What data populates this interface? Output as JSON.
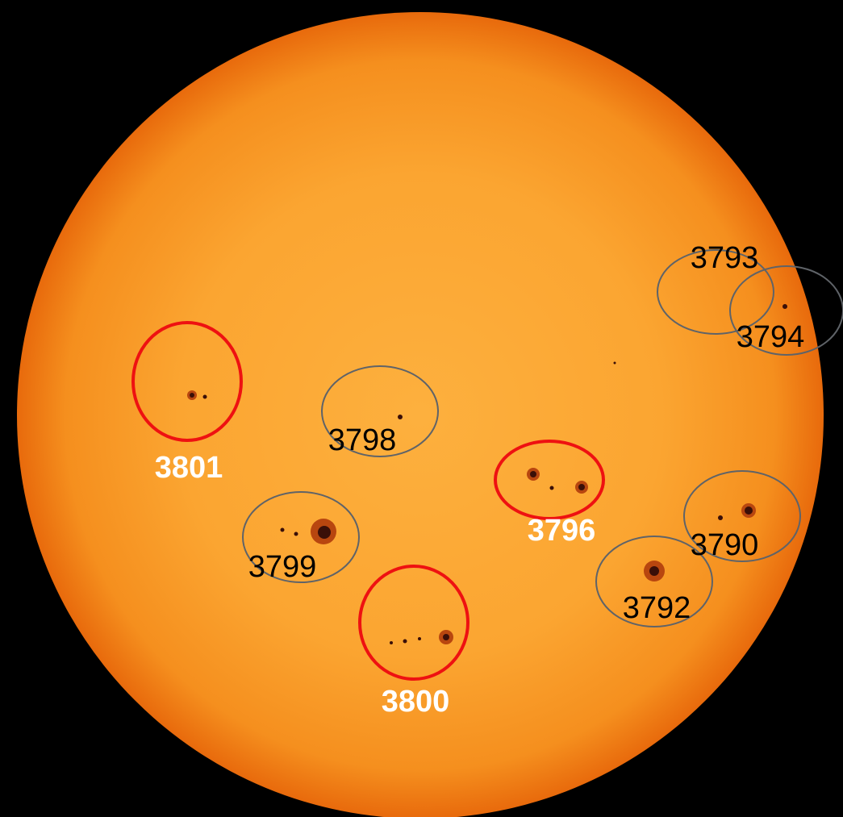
{
  "regions": [
    {
      "label": "3793",
      "highlight": false
    },
    {
      "label": "3794",
      "highlight": false
    },
    {
      "label": "3801",
      "highlight": true
    },
    {
      "label": "3798",
      "highlight": false
    },
    {
      "label": "3796",
      "highlight": true
    },
    {
      "label": "3799",
      "highlight": false
    },
    {
      "label": "3790",
      "highlight": false
    },
    {
      "label": "3792",
      "highlight": false
    },
    {
      "label": "3800",
      "highlight": true
    }
  ]
}
